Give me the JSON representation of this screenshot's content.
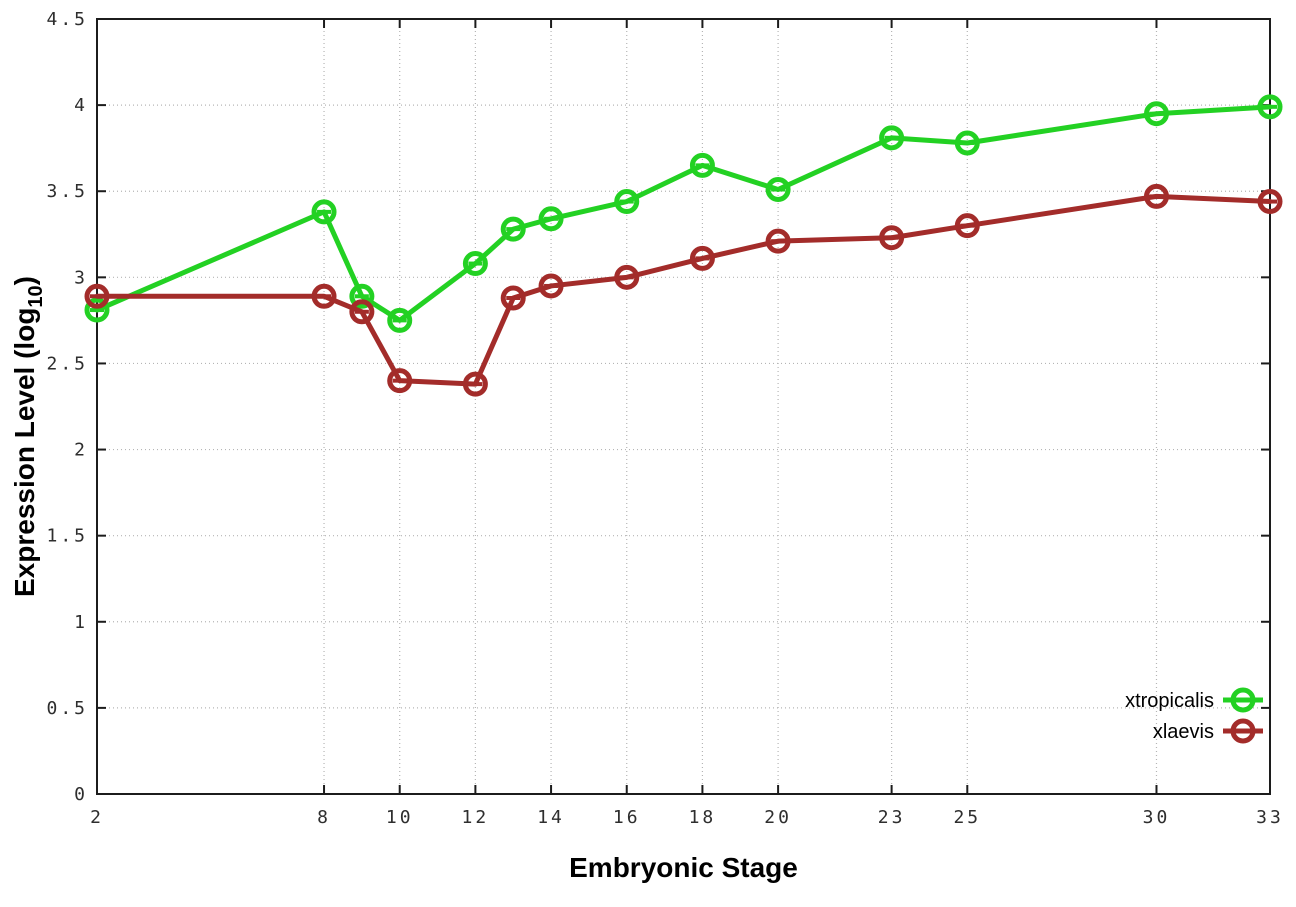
{
  "figure": {
    "background": "#ffffff",
    "border_color": "#1c1c1c",
    "grid_color": "#b5b5b5",
    "tick_label_color": "#2e2e2e",
    "axis_label_color": "#000000"
  },
  "chart_data": {
    "type": "line",
    "title": "",
    "xlabel": "Embryonic Stage",
    "ylabel": "Expression Level (log10)",
    "ylabel_parts": {
      "prefix": "Expression Level (log",
      "subscript": "10",
      "suffix": ")"
    },
    "x": [
      2,
      8,
      9,
      10,
      12,
      13,
      14,
      16,
      18,
      20,
      23,
      25,
      30,
      33
    ],
    "series": [
      {
        "name": "xtropicalis",
        "color": "#23d123",
        "marker": "open-circle-with-horizontal-cap",
        "values": [
          2.81,
          3.38,
          2.89,
          2.75,
          3.08,
          3.28,
          3.34,
          3.44,
          3.65,
          3.51,
          3.81,
          3.78,
          3.95,
          3.99
        ]
      },
      {
        "name": "xlaevis",
        "color": "#a32c2a",
        "marker": "open-circle-with-horizontal-cap",
        "values": [
          2.89,
          2.89,
          2.8,
          2.4,
          2.38,
          2.88,
          2.95,
          3.0,
          3.11,
          3.21,
          3.23,
          3.3,
          3.47,
          3.44
        ]
      }
    ],
    "xlim": [
      2,
      33
    ],
    "ylim": [
      0,
      4.5
    ],
    "xticks": [
      2,
      8,
      10,
      12,
      14,
      16,
      18,
      20,
      23,
      25,
      30,
      33
    ],
    "yticks": [
      0,
      0.5,
      1,
      1.5,
      2,
      2.5,
      3,
      3.5,
      4,
      4.5
    ],
    "grid": true,
    "grid_style": "dotted",
    "legend_position": "bottom-right-inside",
    "legend": [
      "xtropicalis",
      "xlaevis"
    ]
  }
}
